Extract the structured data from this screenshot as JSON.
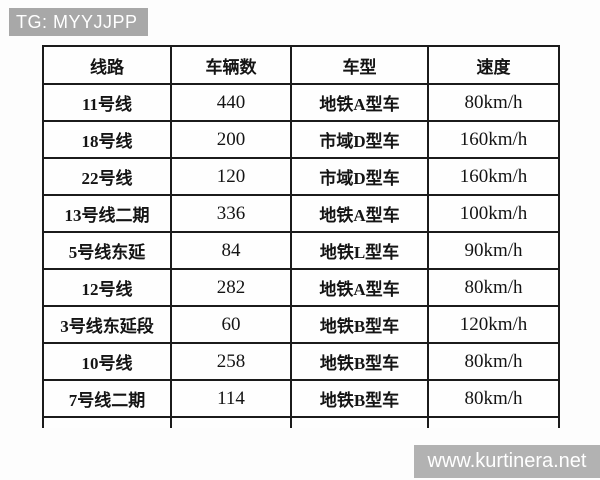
{
  "watermarks": {
    "top_left": "TG: MYYJJPP",
    "bottom_right": "www.kurtinera.net"
  },
  "table": {
    "headers": [
      "线路",
      "车辆数",
      "车型",
      "速度"
    ],
    "rows": [
      [
        "11号线",
        "440",
        "地铁A型车",
        "80km/h"
      ],
      [
        "18号线",
        "200",
        "市域D型车",
        "160km/h"
      ],
      [
        "22号线",
        "120",
        "市域D型车",
        "160km/h"
      ],
      [
        "13号线二期",
        "336",
        "地铁A型车",
        "100km/h"
      ],
      [
        "5号线东延",
        "84",
        "地铁L型车",
        "90km/h"
      ],
      [
        "12号线",
        "282",
        "地铁A型车",
        "80km/h"
      ],
      [
        "3号线东延段",
        "60",
        "地铁B型车",
        "120km/h"
      ],
      [
        "10号线",
        "258",
        "地铁B型车",
        "80km/h"
      ],
      [
        "7号线二期",
        "114",
        "地铁B型车",
        "80km/h"
      ]
    ]
  },
  "colors": {
    "background": "#fdfdfd",
    "table_border": "#1b1b1b",
    "text": "#141414",
    "watermark_top_bg": "#a8a8a8",
    "watermark_bottom_bg": "#b2b2b2",
    "watermark_text": "#ffffff"
  },
  "chart_data": {
    "type": "table",
    "title": "",
    "columns": [
      "线路",
      "车辆数",
      "车型",
      "速度"
    ],
    "rows": [
      {
        "线路": "11号线",
        "车辆数": 440,
        "车型": "地铁A型车",
        "速度": "80km/h"
      },
      {
        "线路": "18号线",
        "车辆数": 200,
        "车型": "市域D型车",
        "速度": "160km/h"
      },
      {
        "线路": "22号线",
        "车辆数": 120,
        "车型": "市域D型车",
        "速度": "160km/h"
      },
      {
        "线路": "13号线二期",
        "车辆数": 336,
        "车型": "地铁A型车",
        "速度": "100km/h"
      },
      {
        "线路": "5号线东延",
        "车辆数": 84,
        "车型": "地铁L型车",
        "速度": "90km/h"
      },
      {
        "线路": "12号线",
        "车辆数": 282,
        "车型": "地铁A型车",
        "速度": "80km/h"
      },
      {
        "线路": "3号线东延段",
        "车辆数": 60,
        "车型": "地铁B型车",
        "速度": "120km/h"
      },
      {
        "线路": "10号线",
        "车辆数": 258,
        "车型": "地铁B型车",
        "速度": "80km/h"
      },
      {
        "线路": "7号线二期",
        "车辆数": 114,
        "车型": "地铁B型车",
        "速度": "80km/h"
      }
    ]
  }
}
